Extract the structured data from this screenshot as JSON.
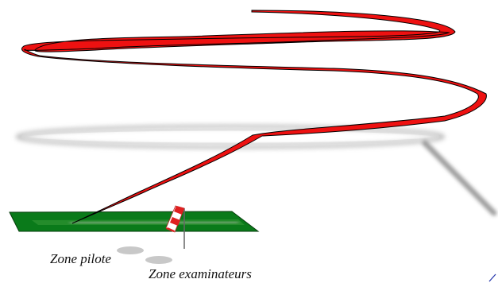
{
  "labels": {
    "zone_pilote": "Zone pilote",
    "zone_examinateurs": "Zone examinateurs"
  },
  "colors": {
    "trajectory_fill": "#ee1111",
    "trajectory_outline": "#000000",
    "ground_strip": "#0a7a1a",
    "shadow": "#9a9a9a",
    "windsock_red": "#e02020",
    "windsock_white": "#ffffff",
    "zone_marker": "#c8c8c8",
    "corner_mark": "#2233aa"
  },
  "icons": {
    "windsock": "windsock-icon"
  }
}
